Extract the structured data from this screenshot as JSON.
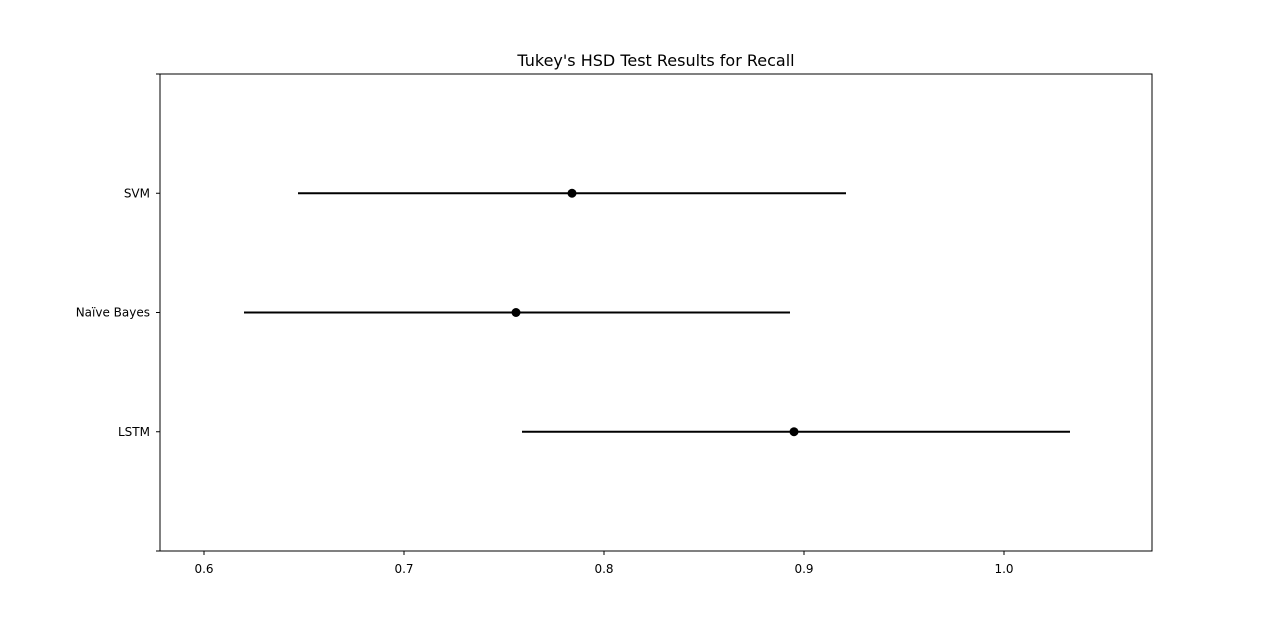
{
  "chart_data": {
    "type": "errorbar",
    "title": "Tukey's HSD Test Results for Recall",
    "xlabel": "",
    "ylabel": "",
    "xlim": [
      0.578,
      1.074
    ],
    "xticks": [
      "0.6",
      "0.7",
      "0.8",
      "0.9",
      "1.0"
    ],
    "xtick_values": [
      0.6,
      0.7,
      0.8,
      0.9,
      1.0
    ],
    "categories": [
      "SVM",
      "Naïve Bayes",
      "LSTM"
    ],
    "series": [
      {
        "category": "SVM",
        "mean": 0.784,
        "lower": 0.647,
        "upper": 0.921
      },
      {
        "category": "Naïve Bayes",
        "mean": 0.756,
        "lower": 0.62,
        "upper": 0.893
      },
      {
        "category": "LSTM",
        "mean": 0.895,
        "lower": 0.759,
        "upper": 1.033
      }
    ],
    "grid": false,
    "colors": {
      "line": "#000000",
      "marker": "#000000"
    }
  }
}
